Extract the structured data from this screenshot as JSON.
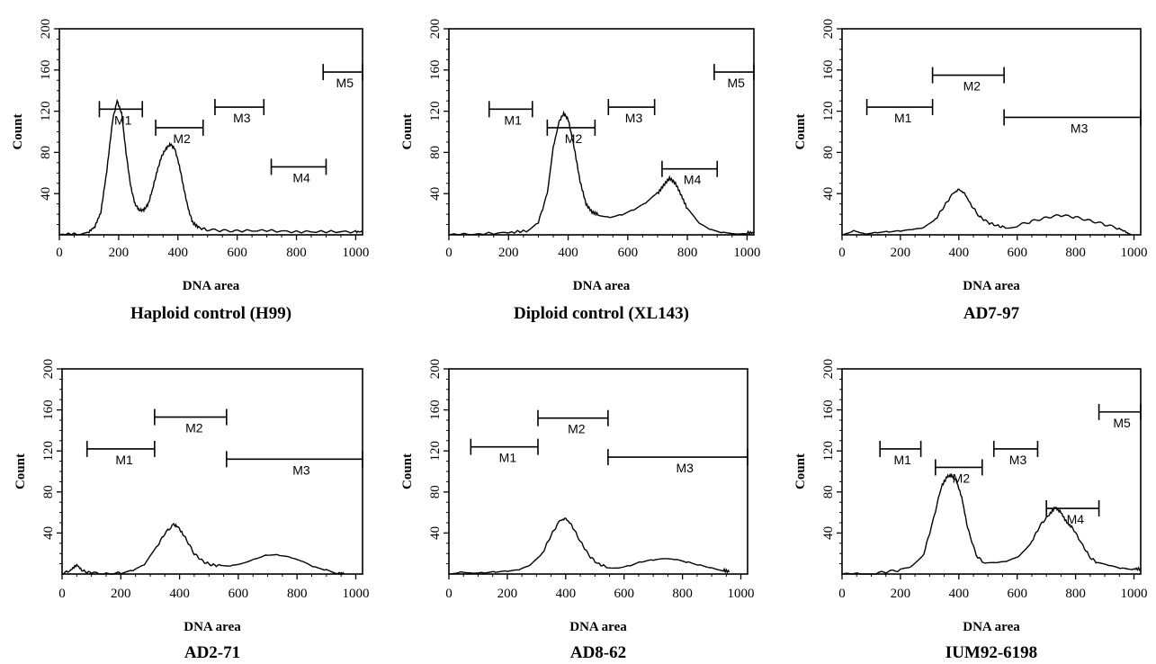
{
  "chart_data": [
    {
      "type": "line",
      "title": "Haploid control (H99)",
      "xlabel": "DNA area",
      "ylabel": "Count",
      "xlim": [
        0,
        1023
      ],
      "ylim": [
        0,
        200
      ],
      "xticks": [
        "0",
        "200",
        "400",
        "600",
        "800",
        "1000"
      ],
      "yticks": [
        "40",
        "80",
        "120",
        "160",
        "200"
      ],
      "series": [
        {
          "x": [
            0,
            60,
            100,
            120,
            140,
            160,
            180,
            195,
            210,
            225,
            240,
            255,
            270,
            285,
            300,
            315,
            330,
            345,
            360,
            375,
            390,
            405,
            420,
            435,
            450,
            470,
            500,
            550,
            600,
            700,
            800,
            900,
            1000,
            1023
          ],
          "y": [
            0,
            1,
            3,
            8,
            22,
            62,
            112,
            130,
            118,
            80,
            48,
            30,
            24,
            24,
            30,
            45,
            62,
            76,
            84,
            88,
            83,
            67,
            45,
            25,
            12,
            7,
            5,
            4,
            4,
            4,
            3,
            3,
            3,
            3
          ]
        }
      ],
      "markers": [
        {
          "label": "M1",
          "from": 135,
          "to": 280,
          "y": 122
        },
        {
          "label": "M2",
          "from": 325,
          "to": 485,
          "y": 104
        },
        {
          "label": "M3",
          "from": 525,
          "to": 690,
          "y": 124
        },
        {
          "label": "M4",
          "from": 715,
          "to": 900,
          "y": 66
        },
        {
          "label": "M5",
          "from": 890,
          "to": 1023,
          "y": 158
        }
      ]
    },
    {
      "type": "line",
      "title": "Diploid control (XL143)",
      "xlabel": "DNA area",
      "ylabel": "Count",
      "xlim": [
        0,
        1023
      ],
      "ylim": [
        0,
        200
      ],
      "xticks": [
        "0",
        "200",
        "400",
        "600",
        "800",
        "1000"
      ],
      "yticks": [
        "40",
        "80",
        "120",
        "160",
        "200"
      ],
      "series": [
        {
          "x": [
            0,
            100,
            200,
            260,
            300,
            330,
            350,
            370,
            385,
            400,
            420,
            440,
            460,
            480,
            500,
            540,
            580,
            620,
            660,
            700,
            720,
            740,
            760,
            780,
            800,
            840,
            880,
            920,
            1000,
            1023
          ],
          "y": [
            0,
            1,
            2,
            4,
            12,
            40,
            85,
            110,
            118,
            112,
            85,
            52,
            30,
            22,
            20,
            18,
            20,
            24,
            30,
            40,
            48,
            55,
            50,
            38,
            25,
            10,
            4,
            2,
            2,
            2
          ]
        }
      ],
      "markers": [
        {
          "label": "M1",
          "from": 135,
          "to": 280,
          "y": 122
        },
        {
          "label": "M2",
          "from": 330,
          "to": 490,
          "y": 104
        },
        {
          "label": "M3",
          "from": 535,
          "to": 690,
          "y": 124
        },
        {
          "label": "M4",
          "from": 715,
          "to": 900,
          "y": 64
        },
        {
          "label": "M5",
          "from": 890,
          "to": 1023,
          "y": 158
        }
      ]
    },
    {
      "type": "line",
      "title": "AD7-97",
      "xlabel": "DNA area",
      "ylabel": "Count",
      "xlim": [
        0,
        1023
      ],
      "ylim": [
        0,
        200
      ],
      "xticks": [
        "0",
        "200",
        "400",
        "600",
        "800",
        "1000"
      ],
      "yticks": [
        "40",
        "80",
        "120",
        "160",
        "200"
      ],
      "series": [
        {
          "x": [
            0,
            40,
            80,
            120,
            160,
            200,
            240,
            280,
            320,
            350,
            380,
            400,
            420,
            440,
            470,
            500,
            530,
            560,
            600,
            650,
            700,
            750,
            800,
            850,
            900,
            950,
            970,
            990
          ],
          "y": [
            0,
            5,
            2,
            3,
            3,
            3,
            4,
            6,
            15,
            28,
            40,
            44,
            40,
            30,
            18,
            12,
            9,
            7,
            9,
            13,
            17,
            19,
            17,
            14,
            10,
            6,
            3,
            0
          ]
        }
      ],
      "markers": [
        {
          "label": "M1",
          "from": 85,
          "to": 310,
          "y": 124
        },
        {
          "label": "M2",
          "from": 310,
          "to": 555,
          "y": 155
        },
        {
          "label": "M3",
          "from": 555,
          "to": 1023,
          "y": 114
        }
      ]
    },
    {
      "type": "line",
      "title": "AD2-71",
      "xlabel": "DNA area",
      "ylabel": "Count",
      "xlim": [
        0,
        1023
      ],
      "ylim": [
        0,
        200
      ],
      "xticks": [
        "0",
        "200",
        "400",
        "600",
        "800",
        "1000"
      ],
      "yticks": [
        "40",
        "80",
        "120",
        "160",
        "200"
      ],
      "series": [
        {
          "x": [
            0,
            30,
            50,
            70,
            100,
            150,
            200,
            240,
            280,
            320,
            350,
            380,
            395,
            420,
            450,
            480,
            510,
            540,
            580,
            620,
            660,
            700,
            740,
            780,
            820,
            860,
            900,
            940,
            960
          ],
          "y": [
            0,
            4,
            9,
            3,
            1,
            0,
            1,
            3,
            8,
            25,
            40,
            48,
            46,
            35,
            20,
            12,
            9,
            8,
            9,
            12,
            16,
            19,
            18,
            15,
            11,
            6,
            4,
            1,
            0
          ]
        }
      ],
      "markers": [
        {
          "label": "M1",
          "from": 85,
          "to": 315,
          "y": 122
        },
        {
          "label": "M2",
          "from": 315,
          "to": 560,
          "y": 153
        },
        {
          "label": "M3",
          "from": 560,
          "to": 1023,
          "y": 112
        }
      ]
    },
    {
      "type": "line",
      "title": "AD8-62",
      "xlabel": "DNA area",
      "ylabel": "Count",
      "xlim": [
        0,
        1023
      ],
      "ylim": [
        0,
        200
      ],
      "xticks": [
        "0",
        "200",
        "400",
        "600",
        "800",
        "1000"
      ],
      "yticks": [
        "40",
        "80",
        "120",
        "160",
        "200"
      ],
      "series": [
        {
          "x": [
            0,
            40,
            80,
            120,
            160,
            200,
            240,
            280,
            320,
            350,
            380,
            400,
            420,
            450,
            480,
            510,
            540,
            580,
            620,
            660,
            700,
            740,
            780,
            820,
            860,
            900,
            940,
            960
          ],
          "y": [
            0,
            3,
            2,
            2,
            2,
            2,
            3,
            8,
            20,
            38,
            52,
            54,
            48,
            32,
            18,
            10,
            7,
            7,
            9,
            12,
            13,
            14,
            13,
            11,
            9,
            7,
            4,
            2
          ]
        }
      ],
      "markers": [
        {
          "label": "M1",
          "from": 75,
          "to": 305,
          "y": 124
        },
        {
          "label": "M2",
          "from": 305,
          "to": 545,
          "y": 152
        },
        {
          "label": "M3",
          "from": 545,
          "to": 1023,
          "y": 114
        }
      ]
    },
    {
      "type": "line",
      "title": "IUM92-6198",
      "xlabel": "DNA area",
      "ylabel": "Count",
      "xlim": [
        0,
        1023
      ],
      "ylim": [
        0,
        200
      ],
      "xticks": [
        "0",
        "200",
        "400",
        "600",
        "800",
        "1000"
      ],
      "yticks": [
        "40",
        "80",
        "120",
        "160",
        "200"
      ],
      "series": [
        {
          "x": [
            0,
            100,
            150,
            200,
            240,
            280,
            310,
            340,
            360,
            375,
            390,
            410,
            430,
            460,
            490,
            530,
            570,
            610,
            650,
            680,
            710,
            730,
            750,
            770,
            790,
            820,
            850,
            880,
            920,
            960,
            1000,
            1023
          ],
          "y": [
            0,
            0,
            2,
            4,
            8,
            20,
            50,
            85,
            95,
            96,
            92,
            75,
            45,
            18,
            10,
            10,
            12,
            18,
            32,
            48,
            58,
            65,
            60,
            50,
            45,
            30,
            16,
            10,
            7,
            5,
            5,
            5
          ]
        }
      ],
      "markers": [
        {
          "label": "M1",
          "from": 130,
          "to": 270,
          "y": 122
        },
        {
          "label": "M2",
          "from": 320,
          "to": 480,
          "y": 104
        },
        {
          "label": "M3",
          "from": 520,
          "to": 670,
          "y": 122
        },
        {
          "label": "M4",
          "from": 700,
          "to": 880,
          "y": 64
        },
        {
          "label": "M5",
          "from": 880,
          "to": 1023,
          "y": 158
        }
      ]
    }
  ]
}
